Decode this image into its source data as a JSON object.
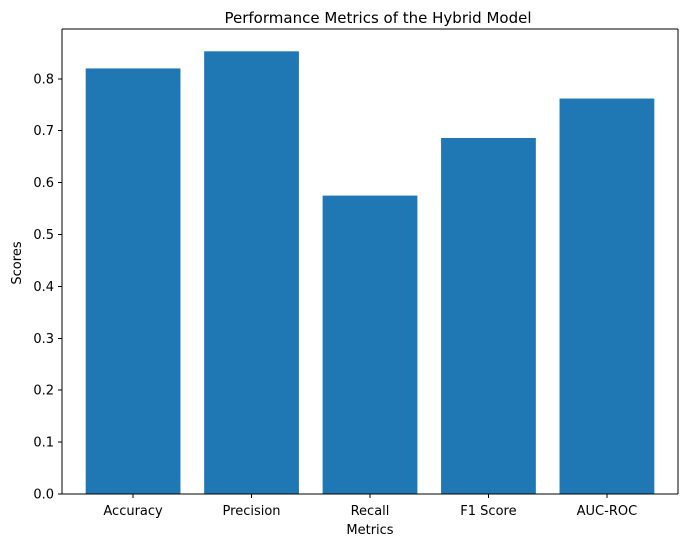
{
  "chart_data": {
    "type": "bar",
    "title": "Performance Metrics of the Hybrid Model",
    "xlabel": "Metrics",
    "ylabel": "Scores",
    "categories": [
      "Accuracy",
      "Precision",
      "Recall",
      "F1 Score",
      "AUC-ROC"
    ],
    "values": [
      0.82,
      0.853,
      0.575,
      0.686,
      0.762
    ],
    "ylim": [
      0,
      0.896
    ],
    "yticks": [
      "0.0",
      "0.1",
      "0.2",
      "0.3",
      "0.4",
      "0.5",
      "0.6",
      "0.7",
      "0.8"
    ],
    "grid": false,
    "legend": "none",
    "colors": {
      "bar": "#1f77b4",
      "axis": "#000000",
      "text": "#000000",
      "background": "#ffffff"
    }
  }
}
